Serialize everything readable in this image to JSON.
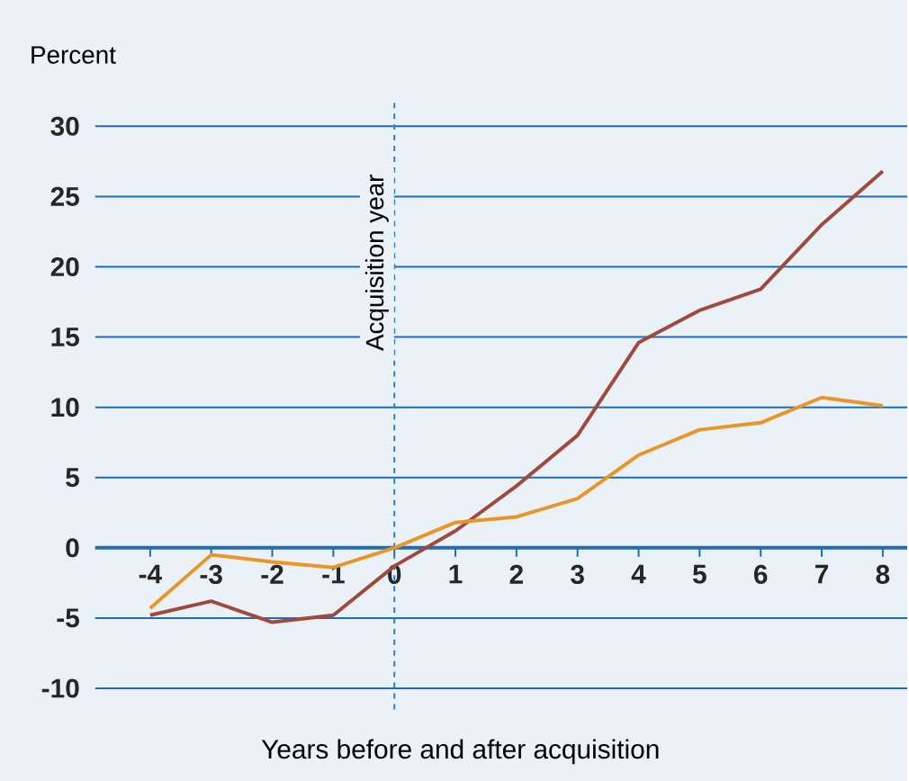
{
  "chart_data": {
    "type": "line",
    "ylabel": "Percent",
    "xlabel": "Years before and after acquisition",
    "x": [
      -4,
      -3,
      -2,
      -1,
      0,
      1,
      2,
      3,
      4,
      5,
      6,
      7,
      8
    ],
    "series": [
      {
        "color": "#a0493e",
        "values": [
          -4.8,
          -3.8,
          -5.3,
          -4.8,
          -1.3,
          1.2,
          4.4,
          8.0,
          14.6,
          16.9,
          18.4,
          23.0,
          26.8
        ]
      },
      {
        "color": "#e8962a",
        "values": [
          -4.3,
          -0.5,
          -1.0,
          -1.4,
          0.0,
          1.8,
          2.2,
          3.5,
          6.6,
          8.4,
          8.9,
          10.7,
          10.1
        ]
      }
    ],
    "xlim": [
      -4.9,
      8.4
    ],
    "ylim": [
      -11.5,
      31.7
    ],
    "xticks": [
      -4,
      -3,
      -2,
      -1,
      0,
      1,
      2,
      3,
      4,
      5,
      6,
      7,
      8
    ],
    "yticks": [
      -10,
      -5,
      0,
      5,
      10,
      15,
      20,
      25,
      30
    ],
    "grid": "y",
    "ref_lines": [
      {
        "axis": "x",
        "value": 0,
        "label": "Acquisition year",
        "color": "#2f7fc1",
        "line_style": "dashed"
      }
    ]
  }
}
